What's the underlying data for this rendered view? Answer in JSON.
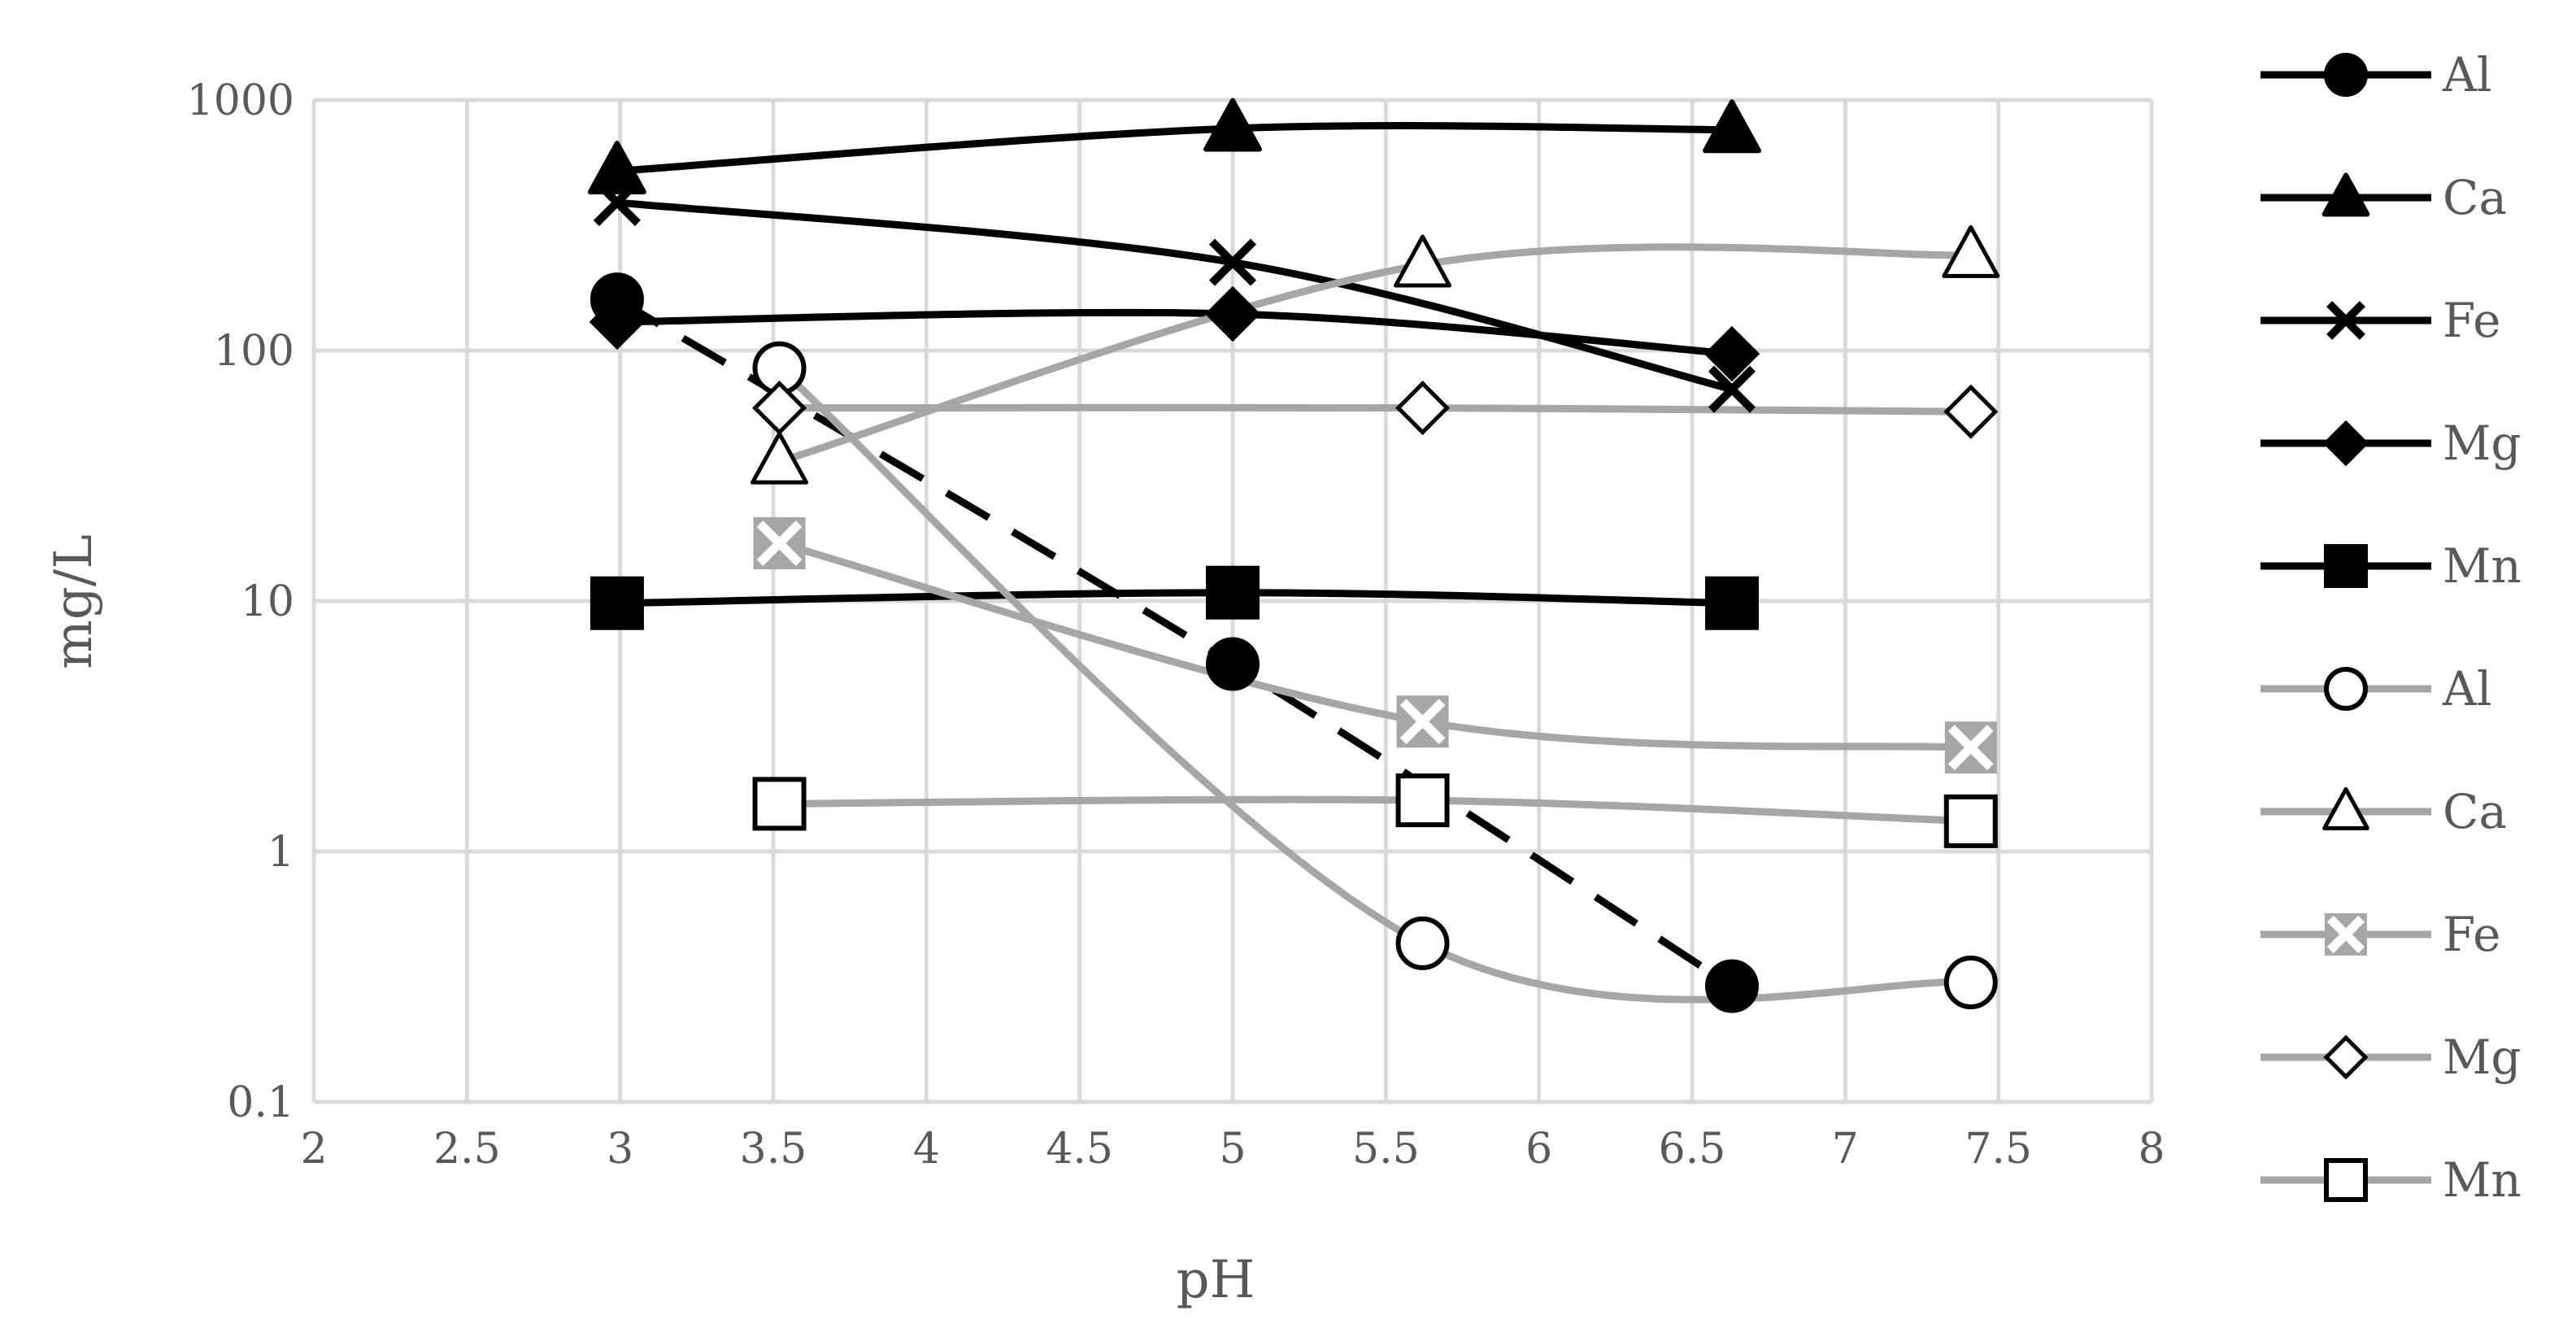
{
  "chart_data": {
    "type": "scatter",
    "xlabel": "pH",
    "ylabel": "mg/L",
    "xlim": [
      2,
      8
    ],
    "ylim": [
      0.1,
      1000
    ],
    "y_scale": "log",
    "x_ticks": [
      "2",
      "2.5",
      "3",
      "3.5",
      "4",
      "4.5",
      "5",
      "5.5",
      "6",
      "6.5",
      "7",
      "7.5",
      "8"
    ],
    "y_ticks": [
      "0.1",
      "1",
      "10",
      "100",
      "1000"
    ],
    "grid": true,
    "legend_position": "right",
    "colors": {
      "dark": "#000000",
      "light": "#a6a6a6",
      "grid": "#d9d9d9",
      "text": "#595959"
    },
    "series": [
      {
        "name": "Al",
        "color": "#000000",
        "marker": "circle-filled",
        "dashed": true,
        "x": [
          2.99,
          5.0,
          6.63
        ],
        "y": [
          160,
          5.6,
          0.29
        ]
      },
      {
        "name": "Ca",
        "color": "#000000",
        "marker": "triangle-filled",
        "dashed": false,
        "x": [
          2.99,
          5.0,
          6.63
        ],
        "y": [
          520,
          770,
          760
        ]
      },
      {
        "name": "Fe",
        "color": "#000000",
        "marker": "x",
        "dashed": false,
        "x": [
          2.99,
          5.0,
          6.63
        ],
        "y": [
          390,
          225,
          70
        ]
      },
      {
        "name": "Mg",
        "color": "#000000",
        "marker": "diamond-filled",
        "dashed": false,
        "x": [
          2.99,
          5.0,
          6.63
        ],
        "y": [
          130,
          140,
          97
        ]
      },
      {
        "name": "Mn",
        "color": "#000000",
        "marker": "square-filled",
        "dashed": false,
        "x": [
          2.99,
          5.0,
          6.63
        ],
        "y": [
          9.8,
          10.8,
          9.8
        ]
      },
      {
        "name": "Al",
        "color": "#a6a6a6",
        "marker": "circle-open",
        "dashed": false,
        "x": [
          3.52,
          5.62,
          7.41
        ],
        "y": [
          85,
          0.43,
          0.3
        ]
      },
      {
        "name": "Ca",
        "color": "#a6a6a6",
        "marker": "triangle-open",
        "dashed": false,
        "x": [
          3.52,
          5.62,
          7.41
        ],
        "y": [
          36,
          220,
          240
        ]
      },
      {
        "name": "Fe",
        "color": "#a6a6a6",
        "marker": "x-square",
        "dashed": false,
        "x": [
          3.52,
          5.62,
          7.41
        ],
        "y": [
          17,
          3.3,
          2.6
        ]
      },
      {
        "name": "Mg",
        "color": "#a6a6a6",
        "marker": "diamond-open",
        "dashed": false,
        "x": [
          3.52,
          5.62,
          7.41
        ],
        "y": [
          59,
          59,
          57
        ]
      },
      {
        "name": "Mn",
        "color": "#a6a6a6",
        "marker": "square-open",
        "dashed": false,
        "x": [
          3.52,
          5.62,
          7.41
        ],
        "y": [
          1.55,
          1.6,
          1.32
        ]
      }
    ]
  }
}
